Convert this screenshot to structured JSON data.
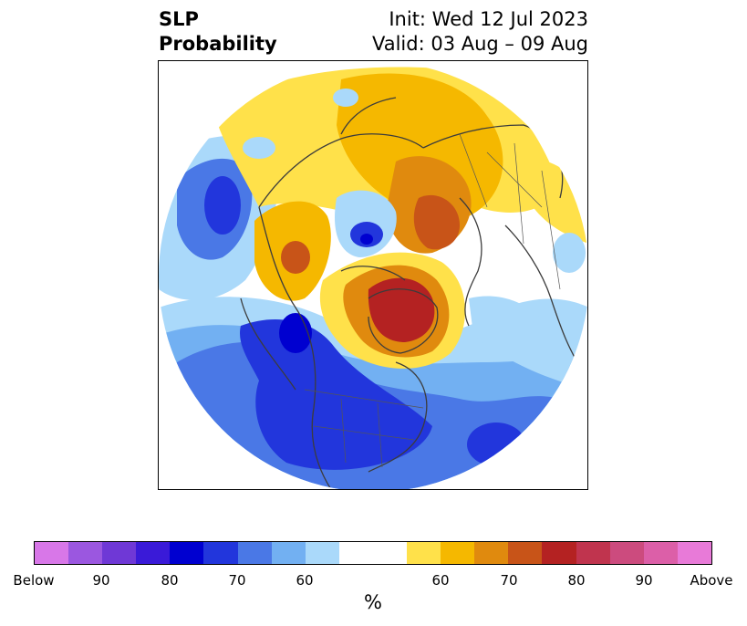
{
  "header": {
    "title_line1": "SLP",
    "title_line2": "Probability",
    "init_text": "Init: Wed 12 Jul 2023",
    "valid_text": "Valid: 03 Aug – 09 Aug"
  },
  "colorbar": {
    "unit": "%",
    "tick_labels": [
      "Below",
      "90",
      "80",
      "70",
      "60",
      "60",
      "70",
      "80",
      "90",
      "Above"
    ],
    "colors": {
      "below_100": "#d877e8",
      "below_90": "#9b57e0",
      "below_85": "#6f38d6",
      "below_80": "#3a1ad8",
      "below_75": "#0000d0",
      "below_70": "#2236dc",
      "below_65": "#4a78e6",
      "below_60": "#72b0f2",
      "below_55": "#aad9fa",
      "neutral": "#ffffff",
      "above_55": "#ffe14a",
      "above_60": "#f5b800",
      "above_65": "#e08a0e",
      "above_70": "#c85418",
      "above_75": "#b42222",
      "above_80": "#c0344e",
      "above_85": "#cc4b7e",
      "above_90": "#dc5fa8",
      "above_100": "#e87ad8"
    }
  },
  "map": {
    "projection": "north-polar-stereographic",
    "variable": "sea level pressure tercile probability",
    "coastline_color": "#3c3c3c"
  }
}
